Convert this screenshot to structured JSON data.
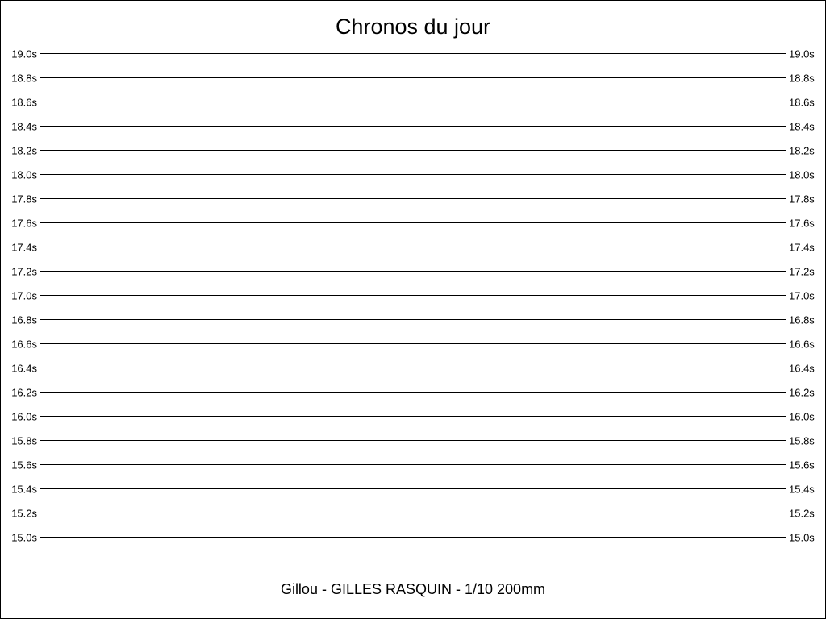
{
  "chart_data": {
    "type": "line",
    "title": "Chronos du jour",
    "subtitle": "Gillou - GILLES RASQUIN - 1/10 200mm",
    "ylim": [
      15.0,
      19.0
    ],
    "y_ticks": [
      "15.0s",
      "15.2s",
      "15.4s",
      "15.6s",
      "15.8s",
      "16.0s",
      "16.2s",
      "16.4s",
      "16.6s",
      "16.8s",
      "17.0s",
      "17.2s",
      "17.4s",
      "17.6s",
      "17.8s",
      "18.0s",
      "18.2s",
      "18.4s",
      "18.6s",
      "18.8s",
      "19.0s"
    ],
    "y_tick_values": [
      15.0,
      15.2,
      15.4,
      15.6,
      15.8,
      16.0,
      16.2,
      16.4,
      16.6,
      16.8,
      17.0,
      17.2,
      17.4,
      17.6,
      17.8,
      18.0,
      18.2,
      18.4,
      18.6,
      18.8,
      19.0
    ],
    "y_axis_both_sides": true,
    "grid": true,
    "series": []
  }
}
